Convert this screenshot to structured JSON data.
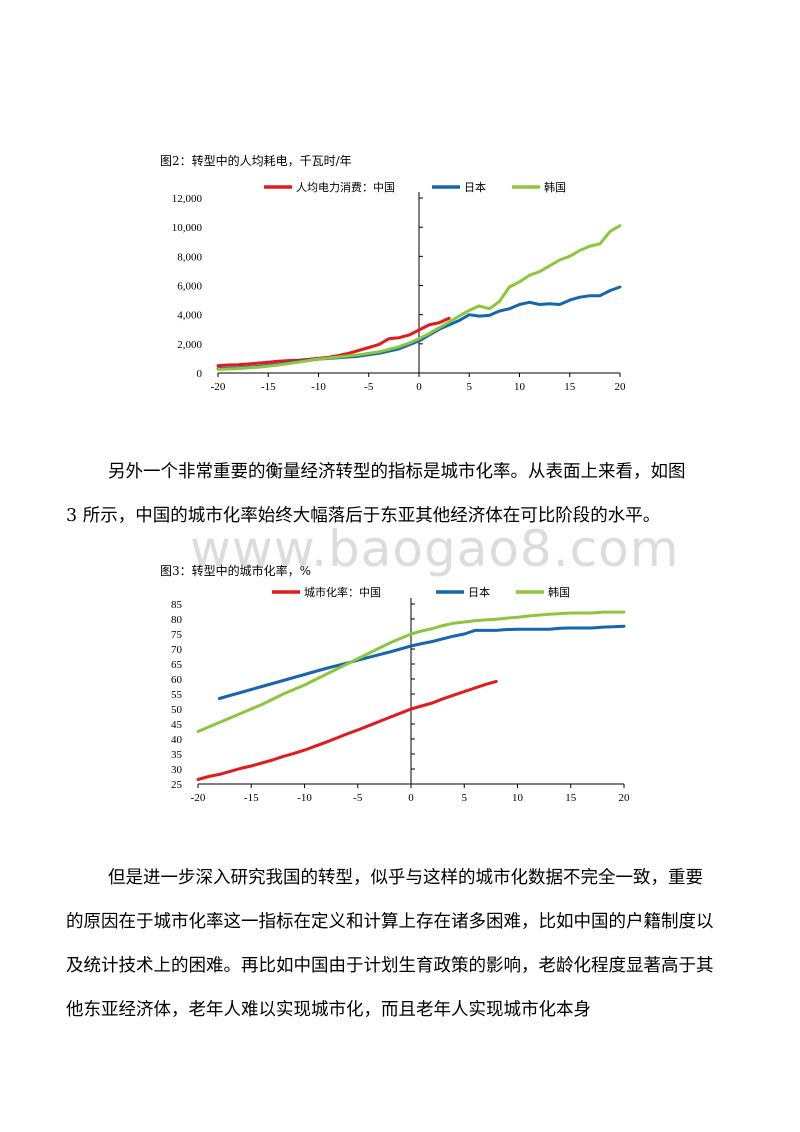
{
  "charts": [
    {
      "caption": "图2：转型中的人均耗电，千瓦时/年",
      "chart_data": {
        "type": "line",
        "title": "图2：转型中的人均耗电，千瓦时/年",
        "xlabel": "",
        "ylabel": "",
        "xlim": [
          -20,
          20
        ],
        "ylim": [
          0,
          12000
        ],
        "xticks": [
          -20,
          -15,
          -10,
          -5,
          0,
          5,
          10,
          15,
          20
        ],
        "yticks": [
          0,
          2000,
          4000,
          6000,
          8000,
          10000,
          12000
        ],
        "ytick_labels": [
          "0",
          "2,000",
          "4,000",
          "6,000",
          "8,000",
          "10,000",
          "12,000"
        ],
        "legend": "top",
        "grid": false,
        "series": [
          {
            "name": "人均电力消费：中国",
            "color": "#e31a1c",
            "x": [
              -20,
              -19,
              -18,
              -17,
              -16,
              -15,
              -14,
              -13,
              -12,
              -11,
              -10,
              -9,
              -8,
              -7,
              -6,
              -5,
              -4,
              -3,
              -2,
              -1,
              0,
              1,
              2,
              3
            ],
            "y": [
              500,
              550,
              560,
              620,
              680,
              740,
              800,
              850,
              880,
              930,
              1000,
              1080,
              1200,
              1350,
              1550,
              1750,
              1950,
              2350,
              2420,
              2600,
              2950,
              3300,
              3450,
              3750
            ]
          },
          {
            "name": "日本",
            "color": "#1565b0",
            "x": [
              -20,
              -18,
              -16,
              -14,
              -12,
              -10,
              -8,
              -6,
              -4,
              -2,
              0,
              1,
              2,
              3,
              4,
              5,
              6,
              7,
              8,
              9,
              10,
              11,
              12,
              13,
              14,
              15,
              16,
              17,
              18,
              19,
              20
            ],
            "y": [
              300,
              350,
              450,
              600,
              800,
              950,
              1050,
              1150,
              1350,
              1650,
              2200,
              2600,
              3000,
              3300,
              3600,
              4000,
              3900,
              3950,
              4250,
              4400,
              4700,
              4850,
              4700,
              4750,
              4700,
              5000,
              5200,
              5300,
              5300,
              5650,
              5900
            ]
          },
          {
            "name": "韩国",
            "color": "#8cc63e",
            "x": [
              -20,
              -18,
              -16,
              -14,
              -12,
              -10,
              -8,
              -6,
              -4,
              -2,
              -1,
              0,
              1,
              2,
              3,
              4,
              5,
              6,
              7,
              8,
              9,
              10,
              11,
              12,
              13,
              14,
              15,
              16,
              17,
              18,
              19,
              20
            ],
            "y": [
              250,
              300,
              400,
              550,
              750,
              950,
              1100,
              1250,
              1450,
              1800,
              2050,
              2350,
              2700,
              3100,
              3500,
              3900,
              4300,
              4600,
              4400,
              4900,
              5900,
              6250,
              6700,
              6950,
              7350,
              7750,
              8000,
              8400,
              8700,
              8850,
              9700,
              10100
            ]
          }
        ]
      }
    },
    {
      "caption": "图3：转型中的城市化率，%",
      "chart_data": {
        "type": "line",
        "title": "图3：转型中的城市化率，%",
        "xlabel": "",
        "ylabel": "",
        "xlim": [
          -20,
          20
        ],
        "ylim": [
          25,
          85
        ],
        "xticks": [
          -20,
          -15,
          -10,
          -5,
          0,
          5,
          10,
          15,
          20
        ],
        "yticks": [
          25,
          30,
          35,
          40,
          45,
          50,
          55,
          60,
          65,
          70,
          75,
          80,
          85
        ],
        "ytick_labels": [
          "25",
          "30",
          "35",
          "40",
          "45",
          "50",
          "55",
          "60",
          "65",
          "70",
          "75",
          "80",
          "85"
        ],
        "legend": "top",
        "grid": false,
        "series": [
          {
            "name": "城市化率：中国",
            "color": "#e31a1c",
            "x": [
              -20,
              -19,
              -18,
              -17,
              -16,
              -15,
              -14,
              -13,
              -12,
              -11,
              -10,
              -9,
              -8,
              -7,
              -6,
              -5,
              -4,
              -3,
              -2,
              -1,
              0,
              1,
              2,
              3,
              4,
              5,
              6,
              7,
              8
            ],
            "y": [
              26.5,
              27.5,
              28.2,
              29.2,
              30.2,
              31.0,
              32.0,
              33.0,
              34.2,
              35.2,
              36.3,
              37.6,
              38.9,
              40.3,
              41.7,
              43.0,
              44.4,
              45.8,
              47.2,
              48.6,
              50.0,
              51.0,
              52.0,
              53.4,
              54.6,
              55.8,
              57.0,
              58.2,
              59.2
            ]
          },
          {
            "name": "日本",
            "color": "#1565b0",
            "x": [
              -18,
              -16,
              -14,
              -12,
              -10,
              -8,
              -6,
              -4,
              -2,
              0,
              1,
              2,
              3,
              4,
              5,
              6,
              7,
              8,
              9,
              10,
              11,
              12,
              13,
              14,
              15,
              16,
              17,
              18,
              19,
              20
            ],
            "y": [
              53.5,
              55.5,
              57.5,
              59.5,
              61.5,
              63.5,
              65.3,
              67.2,
              69.0,
              71.0,
              71.8,
              72.5,
              73.4,
              74.3,
              75.0,
              76.2,
              76.2,
              76.2,
              76.5,
              76.6,
              76.6,
              76.6,
              76.6,
              76.9,
              77.0,
              77.0,
              77.0,
              77.3,
              77.4,
              77.6
            ]
          },
          {
            "name": "韩国",
            "color": "#8cc63e",
            "x": [
              -20,
              -18,
              -16,
              -14,
              -12,
              -10,
              -8,
              -6,
              -4,
              -2,
              0,
              1,
              2,
              3,
              4,
              5,
              6,
              7,
              8,
              9,
              10,
              11,
              12,
              13,
              14,
              15,
              16,
              17,
              18,
              19,
              20
            ],
            "y": [
              42.5,
              45.5,
              48.5,
              51.5,
              55.0,
              58.0,
              61.5,
              65.0,
              68.5,
              72.0,
              75.0,
              76.0,
              76.8,
              77.8,
              78.6,
              79.0,
              79.4,
              79.7,
              79.9,
              80.3,
              80.6,
              81.0,
              81.3,
              81.6,
              81.8,
              82.0,
              82.0,
              82.0,
              82.3,
              82.3,
              82.3
            ]
          }
        ]
      }
    }
  ],
  "paragraphs": [
    {
      "lines": [
        "另外一个非常重要的衡量经济转型的指标是城市化率。从表面上来看，如图",
        "3 所示，中国的城市化率始终大幅落后于东亚其他经济体在可比阶段的水平。"
      ]
    },
    {
      "lines": [
        "但是进一步深入研究我国的转型，似乎与这样的城市化数据不完全一致，重要",
        "的原因在于城市化率这一指标在定义和计算上存在诸多困难，比如中国的户籍制度以",
        "及统计技术上的困难。再比如中国由于计划生育政策的影响，老龄化程度显著高于其",
        "他东亚经济体，老年人难以实现城市化，而且老年人实现城市化本身"
      ]
    }
  ],
  "watermark": "www.baogao8.com"
}
